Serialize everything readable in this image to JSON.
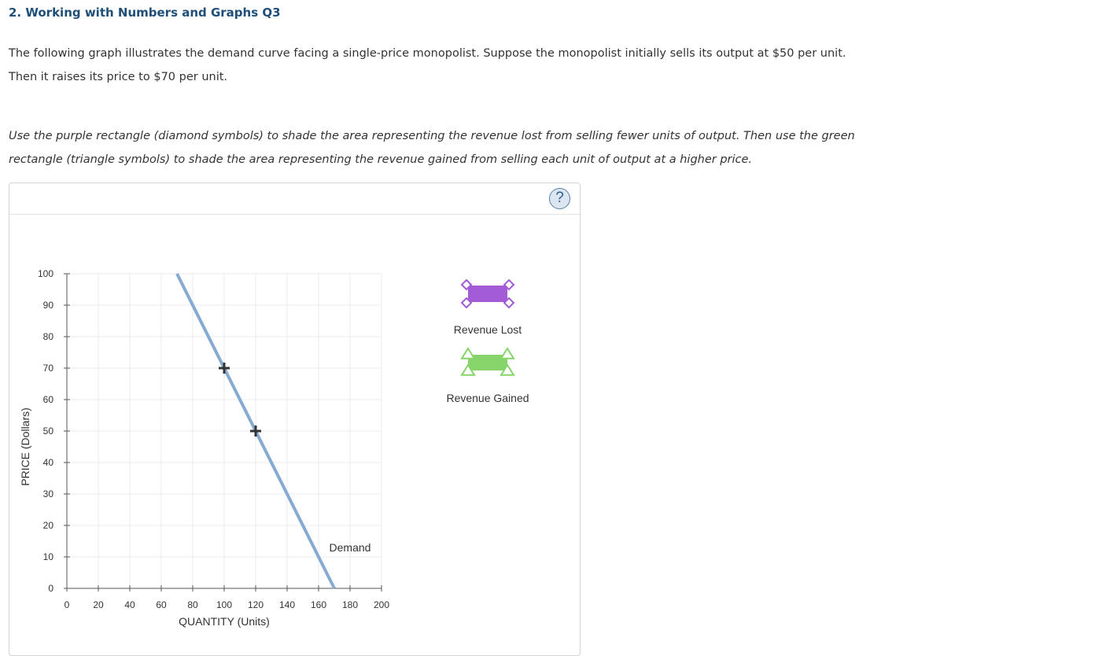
{
  "question": {
    "title": "2. Working with Numbers and Graphs Q3",
    "para1_line1": "The following graph illustrates the demand curve facing a single-price monopolist. Suppose the monopolist initially sells its output at $50 per unit.",
    "para1_line2": "Then it raises its price to $70 per unit.",
    "para2_line1": "Use the purple rectangle (diamond symbols) to shade the area representing the revenue lost from selling fewer units of output. Then use the green",
    "para2_line2": "rectangle (triangle symbols) to shade the area representing the revenue gained from selling each unit of output at a higher price."
  },
  "help": {
    "label": "?"
  },
  "palette": {
    "revenue_lost_fill": "#a35bd6",
    "revenue_lost_stroke": "#a35bd6",
    "revenue_gained_fill": "#86d46a",
    "revenue_gained_stroke": "#86d46a",
    "demand_line": "#86abd3",
    "grid": "#ebebeb",
    "axis": "#555555",
    "marker": "#333333"
  },
  "legend": {
    "revenue_lost": {
      "label": "Revenue Lost",
      "icon": "purple-rectangle-diamond-handles"
    },
    "revenue_gained": {
      "label": "Revenue Gained",
      "icon": "green-rectangle-triangle-handles"
    }
  },
  "chart_data": {
    "type": "line",
    "xlabel": "QUANTITY (Units)",
    "ylabel": "PRICE (Dollars)",
    "xlim": [
      0,
      200
    ],
    "ylim": [
      0,
      100
    ],
    "x_ticks": [
      0,
      20,
      40,
      60,
      80,
      100,
      120,
      140,
      160,
      180,
      200
    ],
    "y_ticks": [
      0,
      10,
      20,
      30,
      40,
      50,
      60,
      70,
      80,
      90,
      100
    ],
    "grid": true,
    "series": [
      {
        "name": "Demand",
        "points": [
          [
            70,
            100
          ],
          [
            170,
            0
          ]
        ]
      }
    ],
    "markers": [
      {
        "x": 100,
        "y": 70,
        "symbol": "plus"
      },
      {
        "x": 120,
        "y": 50,
        "symbol": "plus"
      }
    ],
    "annotations": [
      {
        "text": "Demand",
        "x": 180,
        "y": 13
      }
    ]
  }
}
